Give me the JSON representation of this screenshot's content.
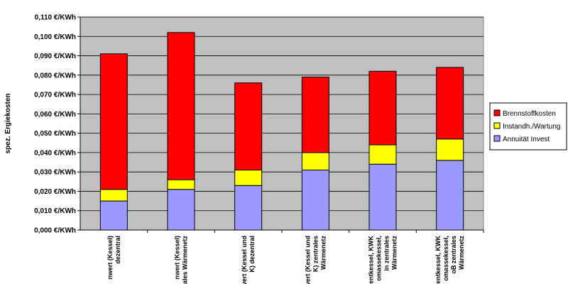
{
  "chart_data": {
    "type": "bar",
    "stacked": true,
    "ylabel": "spez. Ergiekosten",
    "ylim": [
      0,
      0.11
    ],
    "ytick_step": 0.01,
    "ytick_labels": [
      "0,000 €/KWh",
      "0,010 €/KWh",
      "0,020 €/KWh",
      "0,030 €/KWh",
      "0,040 €/KWh",
      "0,050 €/KWh",
      "0,060 €/KWh",
      "0,070 €/KWh",
      "0,080 €/KWh",
      "0,090 €/KWh",
      "0,100 €/KWh",
      "0,110 €/KWh"
    ],
    "grid": true,
    "legend_position": "right",
    "categories": [
      [
        "nwert (Kessel)",
        "dezentral"
      ],
      [
        "nwert (Kessel)",
        "ales Wärmenetz"
      ],
      [
        "vert (Kessel und",
        "K) dezentral"
      ],
      [
        "vert (Kessel und",
        "K) zentrales",
        "Wärmenetz"
      ],
      [
        "rentkessel, KWK",
        "omassekessel,",
        "in zentrales",
        "Wärmenetz"
      ],
      [
        "rentkessel, KWK",
        "omassekessel,",
        "oB zentrales",
        "Wärmenetz"
      ]
    ],
    "series": [
      {
        "name": "Annuität Invest",
        "color": "#9999ff",
        "values": [
          0.015,
          0.021,
          0.023,
          0.031,
          0.034,
          0.036
        ]
      },
      {
        "name": "Instandh./Wartung",
        "color": "#ffff00",
        "values": [
          0.006,
          0.005,
          0.008,
          0.009,
          0.01,
          0.011
        ]
      },
      {
        "name": "Brennstoffkosten",
        "color": "#ff0000",
        "values": [
          0.07,
          0.076,
          0.045,
          0.039,
          0.038,
          0.037
        ]
      }
    ],
    "legend_order": [
      "Brennstoffkosten",
      "Instandh./Wartung",
      "Annuität Invest"
    ],
    "plot_background": "#c0c0c0"
  }
}
